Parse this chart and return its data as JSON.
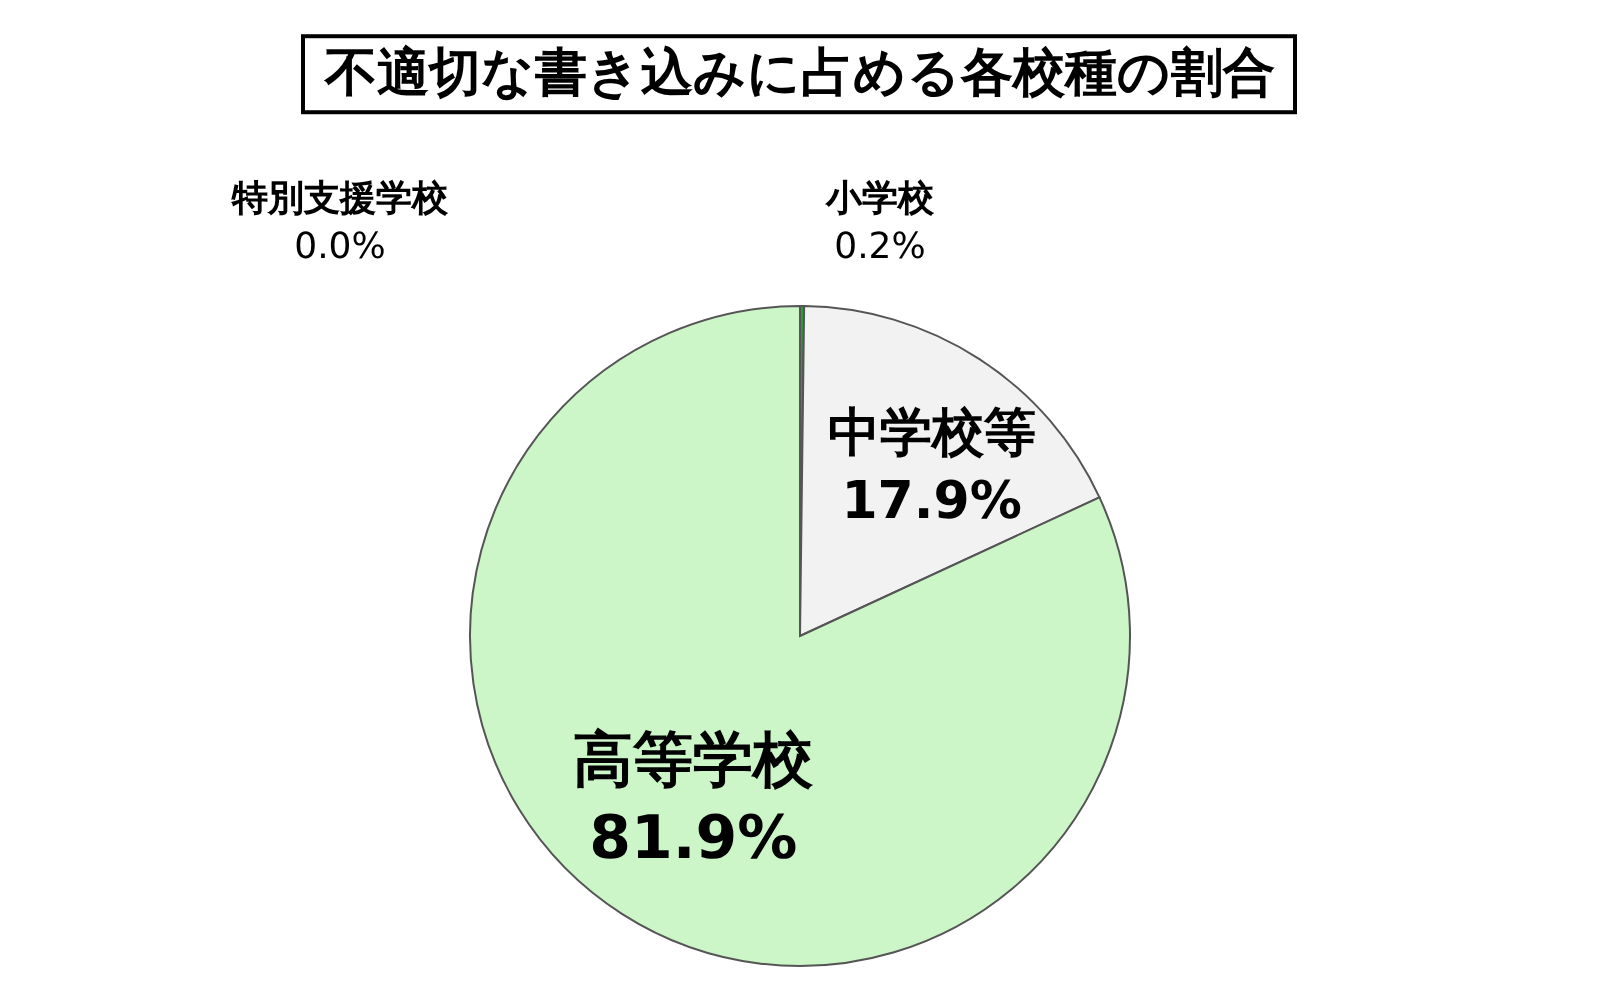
{
  "chart_data": {
    "type": "pie",
    "title": "不適切な書き込みに占める各校種の割合",
    "categories": [
      "小学校",
      "中学校等",
      "高等学校",
      "特別支援学校"
    ],
    "values": [
      0.2,
      17.9,
      81.9,
      0.0
    ],
    "value_labels": [
      "0.2%",
      "17.9%",
      "81.9%",
      "0.0%"
    ],
    "colors": [
      "#2f9a3a",
      "#f2f2f2",
      "#ccf5c8",
      null
    ]
  }
}
